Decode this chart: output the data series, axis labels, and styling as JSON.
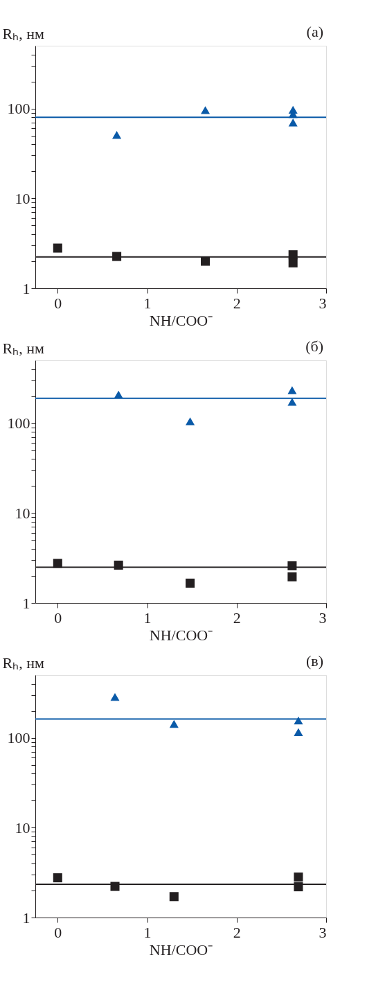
{
  "chart_data": [
    {
      "type": "scatter",
      "xlabel": "NH/COO⁻",
      "ylabel": "Rₕ, нм",
      "annotations": [
        "(a)"
      ],
      "log": "y",
      "grid": false,
      "xlim": [
        -0.25,
        3
      ],
      "xticks": [
        0,
        1,
        2,
        3
      ],
      "ylim": [
        1,
        500
      ],
      "yticks": [
        1,
        {
          "value": 2,
          "label": null
        },
        {
          "value": 3,
          "label": null
        },
        {
          "value": 4,
          "label": null
        },
        {
          "value": 5,
          "label": null
        },
        {
          "value": 6,
          "label": null
        },
        {
          "value": 7,
          "label": null
        },
        {
          "value": 8,
          "label": null
        },
        {
          "value": 9,
          "label": null
        },
        10,
        {
          "value": 20,
          "label": null
        },
        {
          "value": 30,
          "label": null
        },
        {
          "value": 40,
          "label": null
        },
        {
          "value": 50,
          "label": null
        },
        {
          "value": 60,
          "label": null
        },
        {
          "value": 70,
          "label": null
        },
        {
          "value": 80,
          "label": null
        },
        {
          "value": 90,
          "label": null
        },
        100,
        {
          "value": 200,
          "label": null
        },
        {
          "value": 300,
          "label": null
        },
        {
          "value": 400,
          "label": null
        }
      ],
      "series": [
        {
          "color": "#231f20",
          "marker": "square",
          "x": [
            0,
            0.66,
            1.65,
            2.63,
            2.63
          ],
          "values": [
            2.8,
            2.26,
            2.0,
            2.36,
            1.92
          ]
        },
        {
          "color": "#0a5aa8",
          "marker": "triangle",
          "x": [
            0.66,
            1.65,
            2.63,
            2.63,
            2.63
          ],
          "values": [
            51,
            96,
            97,
            87,
            70
          ]
        }
      ],
      "ref_lines": [
        {
          "axis": "y",
          "value": 2.23,
          "color": "#231f20"
        },
        {
          "axis": "y",
          "value": 80,
          "color": "#0a5aa8"
        }
      ]
    },
    {
      "type": "scatter",
      "xlabel": "NH/COO⁻",
      "ylabel": "Rₕ, нм",
      "annotations": [
        "(б)"
      ],
      "log": "y",
      "grid": false,
      "xlim": [
        -0.25,
        3
      ],
      "xticks": [
        0,
        1,
        2,
        3
      ],
      "ylim": [
        1,
        500
      ],
      "yticks": [
        1,
        {
          "value": 2,
          "label": null
        },
        {
          "value": 3,
          "label": null
        },
        {
          "value": 4,
          "label": null
        },
        {
          "value": 5,
          "label": null
        },
        {
          "value": 6,
          "label": null
        },
        {
          "value": 7,
          "label": null
        },
        {
          "value": 8,
          "label": null
        },
        {
          "value": 9,
          "label": null
        },
        10,
        {
          "value": 20,
          "label": null
        },
        {
          "value": 30,
          "label": null
        },
        {
          "value": 40,
          "label": null
        },
        {
          "value": 50,
          "label": null
        },
        {
          "value": 60,
          "label": null
        },
        {
          "value": 70,
          "label": null
        },
        {
          "value": 80,
          "label": null
        },
        {
          "value": 90,
          "label": null
        },
        100,
        {
          "value": 200,
          "label": null
        },
        {
          "value": 300,
          "label": null
        },
        {
          "value": 400,
          "label": null
        }
      ],
      "series": [
        {
          "color": "#231f20",
          "marker": "square",
          "x": [
            0,
            0.68,
            1.48,
            2.62,
            2.62
          ],
          "values": [
            2.75,
            2.63,
            1.66,
            2.59,
            1.95
          ]
        },
        {
          "color": "#0a5aa8",
          "marker": "triangle",
          "x": [
            0.68,
            1.48,
            2.62,
            2.62
          ],
          "values": [
            208,
            105,
            233,
            173
          ]
        }
      ],
      "ref_lines": [
        {
          "axis": "y",
          "value": 2.49,
          "color": "#231f20"
        },
        {
          "axis": "y",
          "value": 189,
          "color": "#0a5aa8"
        }
      ]
    },
    {
      "type": "scatter",
      "xlabel": "NH/COO⁻",
      "ylabel": "Rₕ, нм",
      "annotations": [
        "(в)"
      ],
      "log": "y",
      "grid": false,
      "xlim": [
        -0.25,
        3
      ],
      "xticks": [
        0,
        1,
        2,
        3
      ],
      "ylim": [
        1,
        500
      ],
      "yticks": [
        1,
        {
          "value": 2,
          "label": null
        },
        {
          "value": 3,
          "label": null
        },
        {
          "value": 4,
          "label": null
        },
        {
          "value": 5,
          "label": null
        },
        {
          "value": 6,
          "label": null
        },
        {
          "value": 7,
          "label": null
        },
        {
          "value": 8,
          "label": null
        },
        {
          "value": 9,
          "label": null
        },
        10,
        {
          "value": 20,
          "label": null
        },
        {
          "value": 30,
          "label": null
        },
        {
          "value": 40,
          "label": null
        },
        {
          "value": 50,
          "label": null
        },
        {
          "value": 60,
          "label": null
        },
        {
          "value": 70,
          "label": null
        },
        {
          "value": 80,
          "label": null
        },
        {
          "value": 90,
          "label": null
        },
        100,
        {
          "value": 200,
          "label": null
        },
        {
          "value": 300,
          "label": null
        },
        {
          "value": 400,
          "label": null
        }
      ],
      "series": [
        {
          "color": "#231f20",
          "marker": "square",
          "x": [
            0,
            0.64,
            1.3,
            2.69,
            2.69
          ],
          "values": [
            2.77,
            2.22,
            1.71,
            2.82,
            2.2
          ]
        },
        {
          "color": "#0a5aa8",
          "marker": "triangle",
          "x": [
            0.64,
            1.3,
            2.69,
            2.69
          ],
          "values": [
            285,
            143,
            156,
            116
          ]
        }
      ],
      "ref_lines": [
        {
          "axis": "y",
          "value": 2.34,
          "color": "#231f20"
        },
        {
          "axis": "y",
          "value": 162,
          "color": "#0a5aa8"
        }
      ]
    }
  ]
}
